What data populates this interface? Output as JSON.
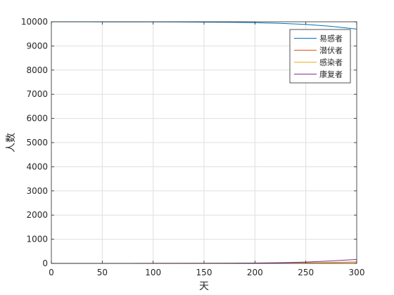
{
  "chart_data": {
    "type": "line",
    "xlabel": "天",
    "ylabel": "人数",
    "xlim": [
      0,
      300
    ],
    "ylim": [
      0,
      10000
    ],
    "xticks": [
      0,
      50,
      100,
      150,
      200,
      250,
      300
    ],
    "yticks": [
      0,
      1000,
      2000,
      3000,
      4000,
      5000,
      6000,
      7000,
      8000,
      9000,
      10000
    ],
    "grid": true,
    "legend_position": "top-right",
    "x": [
      0,
      25,
      50,
      75,
      100,
      125,
      150,
      175,
      200,
      225,
      250,
      275,
      300
    ],
    "series": [
      {
        "name": "易感者",
        "color": "#0072BD",
        "values": [
          9999,
          9999,
          9998,
          9997,
          9995,
          9992,
          9987,
          9978,
          9962,
          9935,
          9890,
          9810,
          9700
        ]
      },
      {
        "name": "潜伏者",
        "color": "#D95319",
        "values": [
          0,
          0,
          0,
          0,
          1,
          1,
          2,
          4,
          8,
          14,
          24,
          40,
          60
        ]
      },
      {
        "name": "感染者",
        "color": "#EDB120",
        "values": [
          1,
          1,
          1,
          1,
          1,
          2,
          3,
          5,
          8,
          13,
          20,
          30,
          45
        ]
      },
      {
        "name": "康复者",
        "color": "#7E2F8E",
        "values": [
          0,
          0,
          0,
          1,
          2,
          3,
          5,
          9,
          16,
          30,
          55,
          100,
          165
        ]
      }
    ]
  }
}
